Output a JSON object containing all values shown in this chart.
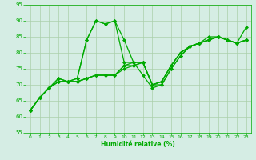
{
  "title": "",
  "xlabel": "Humidité relative (%)",
  "ylabel": "",
  "xlim": [
    -0.5,
    23.5
  ],
  "ylim": [
    55,
    95
  ],
  "yticks": [
    55,
    60,
    65,
    70,
    75,
    80,
    85,
    90,
    95
  ],
  "xticks": [
    0,
    1,
    2,
    3,
    4,
    5,
    6,
    7,
    8,
    9,
    10,
    11,
    12,
    13,
    14,
    15,
    16,
    17,
    18,
    19,
    20,
    21,
    22,
    23
  ],
  "background_color": "#d5ede4",
  "grid_color": "#aacfaa",
  "line_color": "#00aa00",
  "marker": "D",
  "markersize": 2.0,
  "linewidth": 0.9,
  "series": [
    [
      62,
      66,
      69,
      72,
      71,
      72,
      84,
      90,
      89,
      90,
      84,
      77,
      77,
      70,
      70,
      75,
      79,
      82,
      83,
      84,
      85,
      84,
      83,
      88
    ],
    [
      62,
      66,
      69,
      72,
      71,
      72,
      84,
      90,
      89,
      90,
      77,
      77,
      73,
      69,
      70,
      75,
      79,
      82,
      83,
      84,
      85,
      84,
      83,
      84
    ],
    [
      62,
      66,
      69,
      71,
      71,
      71,
      72,
      73,
      73,
      73,
      76,
      77,
      77,
      70,
      71,
      76,
      80,
      82,
      83,
      84,
      85,
      84,
      83,
      84
    ],
    [
      62,
      66,
      69,
      71,
      71,
      71,
      72,
      73,
      73,
      73,
      76,
      76,
      77,
      70,
      71,
      76,
      80,
      82,
      83,
      84,
      85,
      84,
      83,
      84
    ],
    [
      62,
      66,
      69,
      71,
      71,
      71,
      72,
      73,
      73,
      73,
      75,
      76,
      77,
      70,
      71,
      76,
      80,
      82,
      83,
      85,
      85,
      84,
      83,
      84
    ]
  ]
}
